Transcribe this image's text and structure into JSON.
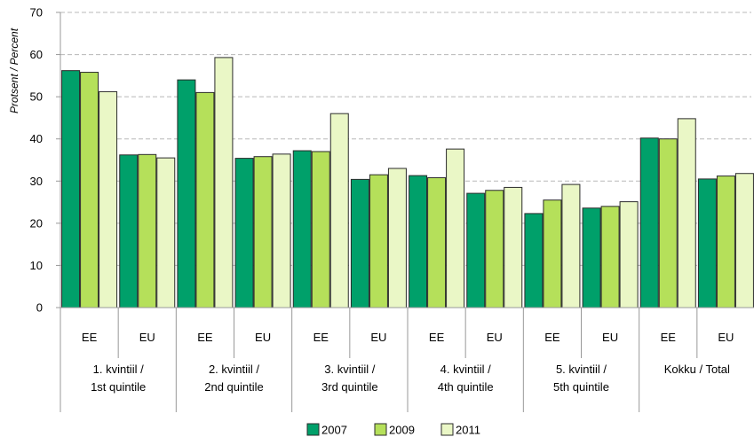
{
  "chart_data": {
    "type": "bar",
    "ylabel": "Protsent / Percent",
    "ylim": [
      0,
      70
    ],
    "yticks": [
      0,
      10,
      20,
      30,
      40,
      50,
      60,
      70
    ],
    "grid": true,
    "legend_position": "bottom",
    "categories": [
      "EE",
      "EU",
      "EE",
      "EU",
      "EE",
      "EU",
      "EE",
      "EU",
      "EE",
      "EU",
      "EE",
      "EU"
    ],
    "groups": [
      {
        "line1": "1. kvintiil /",
        "line2": "1st quintile"
      },
      {
        "line1": "2. kvintiil /",
        "line2": "2nd quintile"
      },
      {
        "line1": "3. kvintiil /",
        "line2": "3rd quintile"
      },
      {
        "line1": "4. kvintiil /",
        "line2": "4th quintile"
      },
      {
        "line1": "5. kvintiil /",
        "line2": "5th quintile"
      },
      {
        "line1": "Kokku / Total",
        "line2": ""
      }
    ],
    "series": [
      {
        "name": "2007",
        "color": "#00a06a",
        "values": [
          56.2,
          36.2,
          54.0,
          35.4,
          37.2,
          30.4,
          31.3,
          27.1,
          22.3,
          23.6,
          40.2,
          30.5
        ]
      },
      {
        "name": "2009",
        "color": "#b5e05a",
        "values": [
          55.8,
          36.3,
          51.0,
          35.8,
          37.0,
          31.5,
          30.8,
          27.8,
          25.5,
          24.0,
          40.0,
          31.2
        ]
      },
      {
        "name": "2011",
        "color": "#eaf7c6",
        "values": [
          51.2,
          35.5,
          59.3,
          36.4,
          46.0,
          33.0,
          37.6,
          28.5,
          29.2,
          25.1,
          44.8,
          31.8
        ]
      }
    ]
  }
}
